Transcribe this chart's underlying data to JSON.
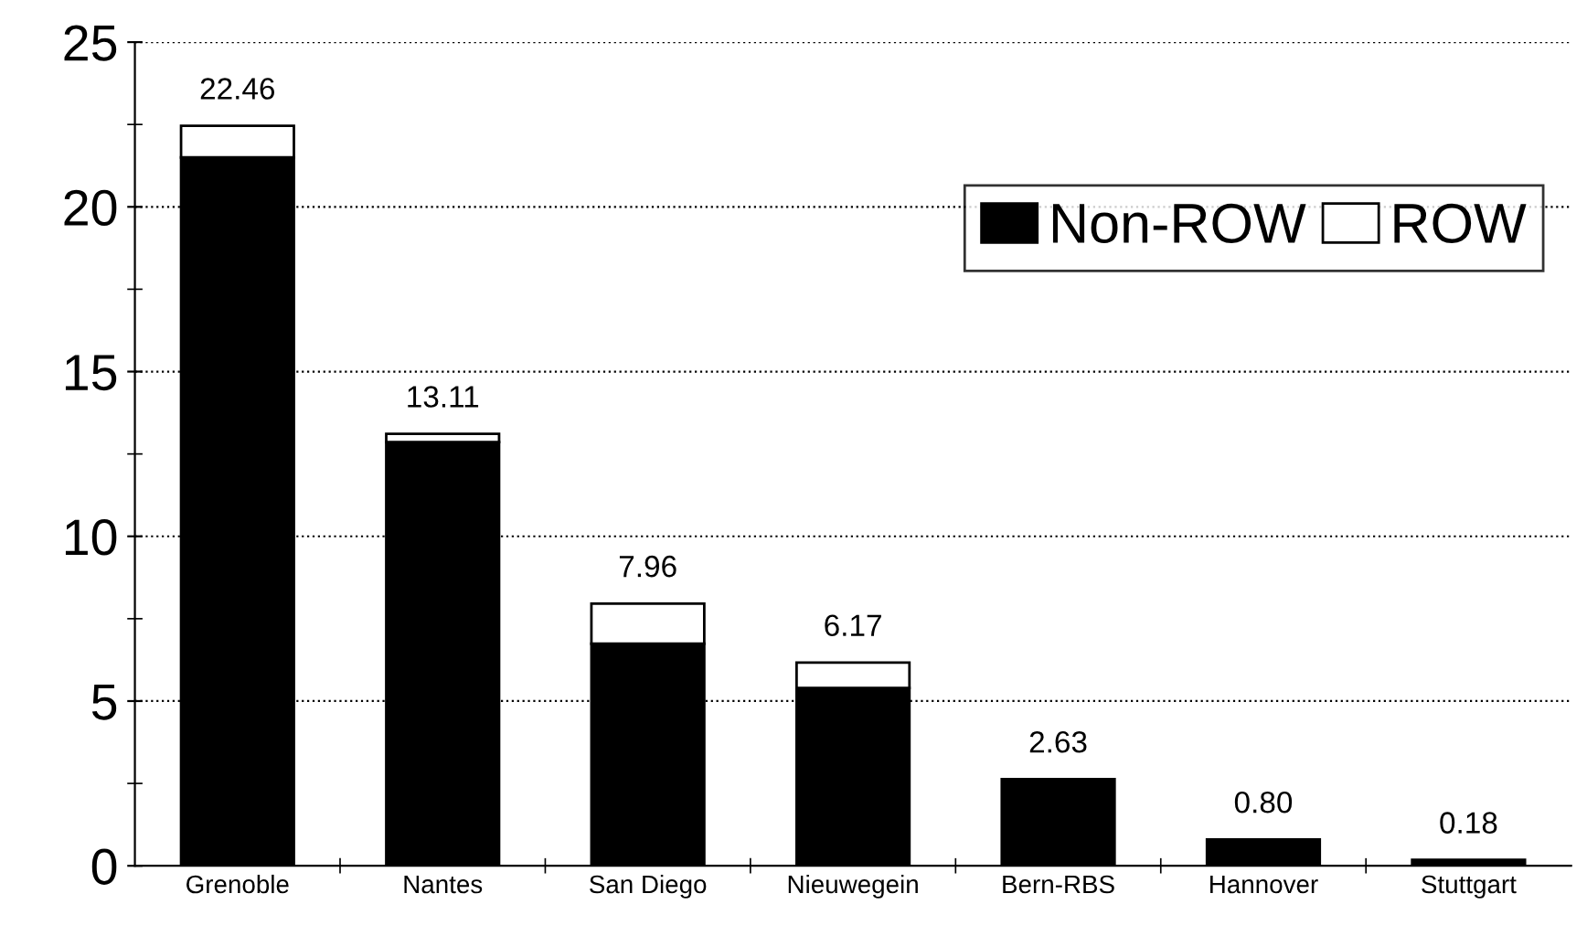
{
  "chart_data": {
    "type": "bar",
    "stacked": true,
    "categories": [
      "Grenoble",
      "Nantes",
      "San Diego",
      "Nieuwegein",
      "Bern-RBS",
      "Hannover",
      "Stuttgart"
    ],
    "series": [
      {
        "name": "Non-ROW",
        "color": "#000000",
        "values": [
          21.5,
          12.86,
          6.74,
          5.4,
          2.63,
          0.8,
          0.18
        ]
      },
      {
        "name": "ROW",
        "color": "#ffffff",
        "values": [
          0.96,
          0.25,
          1.22,
          0.77,
          null,
          null,
          null
        ]
      }
    ],
    "totals": [
      "22.46",
      "13.11",
      "7.96",
      "6.17",
      "2.63",
      "0.80",
      "0.18"
    ],
    "ylim": [
      0,
      25
    ],
    "yticks": [
      0,
      5,
      10,
      15,
      20,
      25
    ],
    "grid": "y",
    "legend": "top right"
  }
}
